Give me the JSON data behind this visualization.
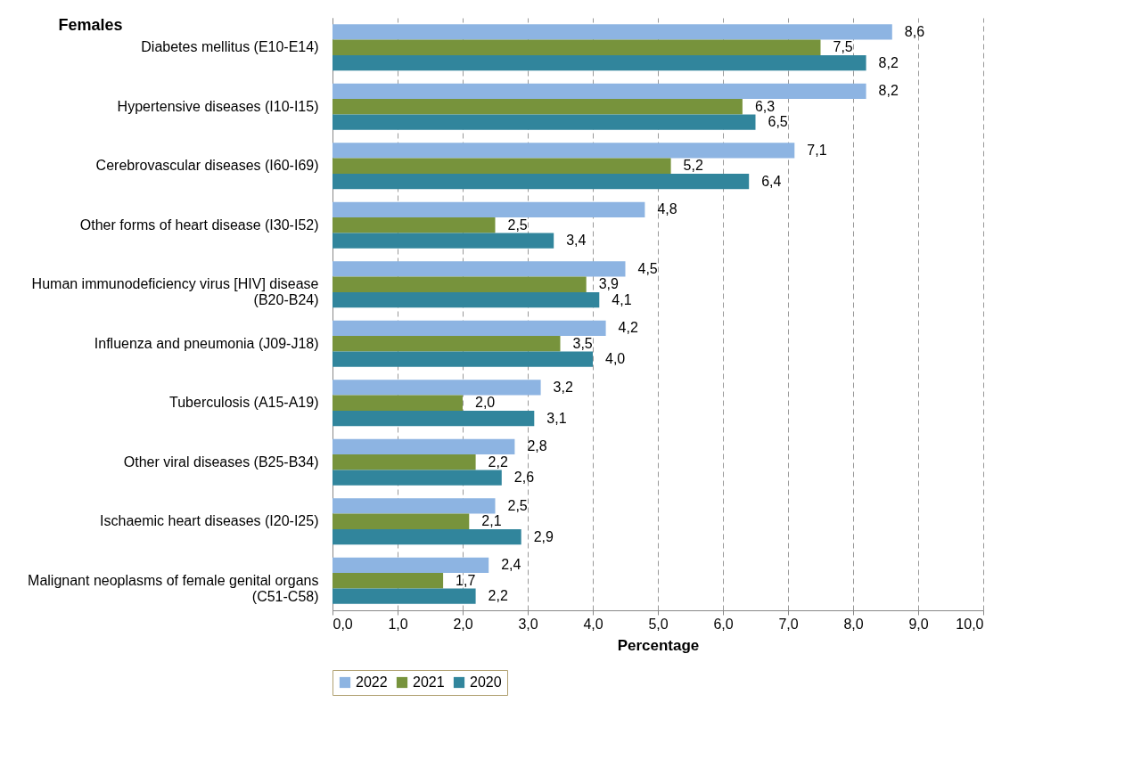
{
  "chart_data": {
    "type": "bar",
    "orientation": "horizontal",
    "title": "Females",
    "xlabel": "Percentage",
    "categories": [
      "Diabetes mellitus (E10-E14)",
      "Hypertensive diseases (I10-I15)",
      "Cerebrovascular diseases (I60-I69)",
      "Other forms of heart disease (I30-I52)",
      "Human immunodeficiency virus [HIV] disease (B20-B24)",
      "Influenza and pneumonia (J09-J18)",
      "Tuberculosis (A15-A19)",
      "Other viral diseases (B25-B34)",
      "Ischaemic heart diseases (I20-I25)",
      "Malignant neoplasms of female genital organs (C51-C58)"
    ],
    "series": [
      {
        "name": "2022",
        "color": "#8db4e2",
        "values": [
          8.6,
          8.2,
          7.1,
          4.8,
          4.5,
          4.2,
          3.2,
          2.8,
          2.5,
          2.4
        ],
        "value_labels": [
          "8,6",
          "8,2",
          "7,1",
          "4,8",
          "4,5",
          "4,2",
          "3,2",
          "2,8",
          "2,5",
          "2,4"
        ]
      },
      {
        "name": "2021",
        "color": "#77933c",
        "values": [
          7.5,
          6.3,
          5.2,
          2.5,
          3.9,
          3.5,
          2.0,
          2.2,
          2.1,
          1.7
        ],
        "value_labels": [
          "7,5",
          "6,3",
          "5,2",
          "2,5",
          "3,9",
          "3,5",
          "2,0",
          "2,2",
          "2,1",
          "1,7"
        ]
      },
      {
        "name": "2020",
        "color": "#31859c",
        "values": [
          8.2,
          6.5,
          6.4,
          3.4,
          4.1,
          4.0,
          3.1,
          2.6,
          2.9,
          2.2
        ],
        "value_labels": [
          "8,2",
          "6,5",
          "6,4",
          "3,4",
          "4,1",
          "4,0",
          "3,1",
          "2,6",
          "2,9",
          "2,2"
        ]
      }
    ],
    "xlim": [
      0,
      10
    ],
    "xticks": [
      {
        "value": 0,
        "label": "0,0"
      },
      {
        "value": 1,
        "label": "1,0"
      },
      {
        "value": 2,
        "label": "2,0"
      },
      {
        "value": 3,
        "label": "3,0"
      },
      {
        "value": 4,
        "label": "4,0"
      },
      {
        "value": 5,
        "label": "5,0"
      },
      {
        "value": 6,
        "label": "6,0"
      },
      {
        "value": 7,
        "label": "7,0"
      },
      {
        "value": 8,
        "label": "8,0"
      },
      {
        "value": 9,
        "label": "9,0"
      },
      {
        "value": 10,
        "label": "10,0"
      }
    ],
    "grid": "x",
    "legend": "bottom"
  }
}
